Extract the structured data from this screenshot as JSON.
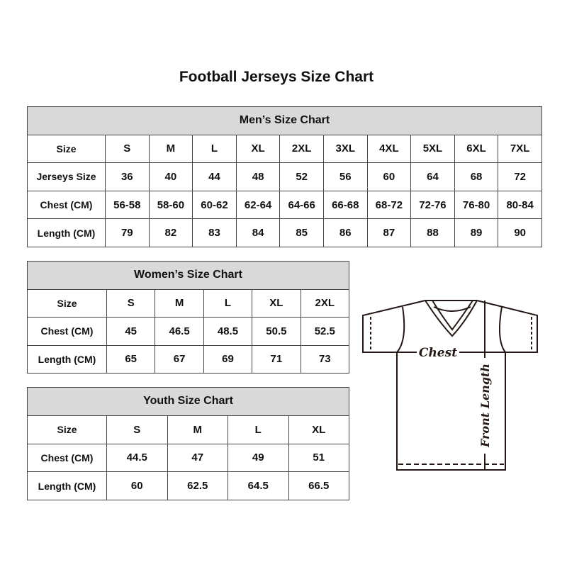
{
  "title": "Football Jerseys Size Chart",
  "men": {
    "heading": "Men’s Size Chart",
    "rows": [
      [
        "Size",
        "S",
        "M",
        "L",
        "XL",
        "2XL",
        "3XL",
        "4XL",
        "5XL",
        "6XL",
        "7XL"
      ],
      [
        "Jerseys Size",
        "36",
        "40",
        "44",
        "48",
        "52",
        "56",
        "60",
        "64",
        "68",
        "72"
      ],
      [
        "Chest (CM)",
        "56-58",
        "58-60",
        "60-62",
        "62-64",
        "64-66",
        "66-68",
        "68-72",
        "72-76",
        "76-80",
        "80-84"
      ],
      [
        "Length (CM)",
        "79",
        "82",
        "83",
        "84",
        "85",
        "86",
        "87",
        "88",
        "89",
        "90"
      ]
    ]
  },
  "women": {
    "heading": "Women’s Size Chart",
    "rows": [
      [
        "Size",
        "S",
        "M",
        "L",
        "XL",
        "2XL"
      ],
      [
        "Chest (CM)",
        "45",
        "46.5",
        "48.5",
        "50.5",
        "52.5"
      ],
      [
        "Length (CM)",
        "65",
        "67",
        "69",
        "71",
        "73"
      ]
    ]
  },
  "youth": {
    "heading": "Youth Size Chart",
    "rows": [
      [
        "Size",
        "S",
        "M",
        "L",
        "XL"
      ],
      [
        "Chest (CM)",
        "44.5",
        "47",
        "49",
        "51"
      ],
      [
        "Length (CM)",
        "60",
        "62.5",
        "64.5",
        "66.5"
      ]
    ]
  },
  "diagram": {
    "chest_label": "Chest",
    "length_label": "Front Length"
  },
  "colors": {
    "header_bg": "#d9d9d9",
    "line": "#231815"
  }
}
